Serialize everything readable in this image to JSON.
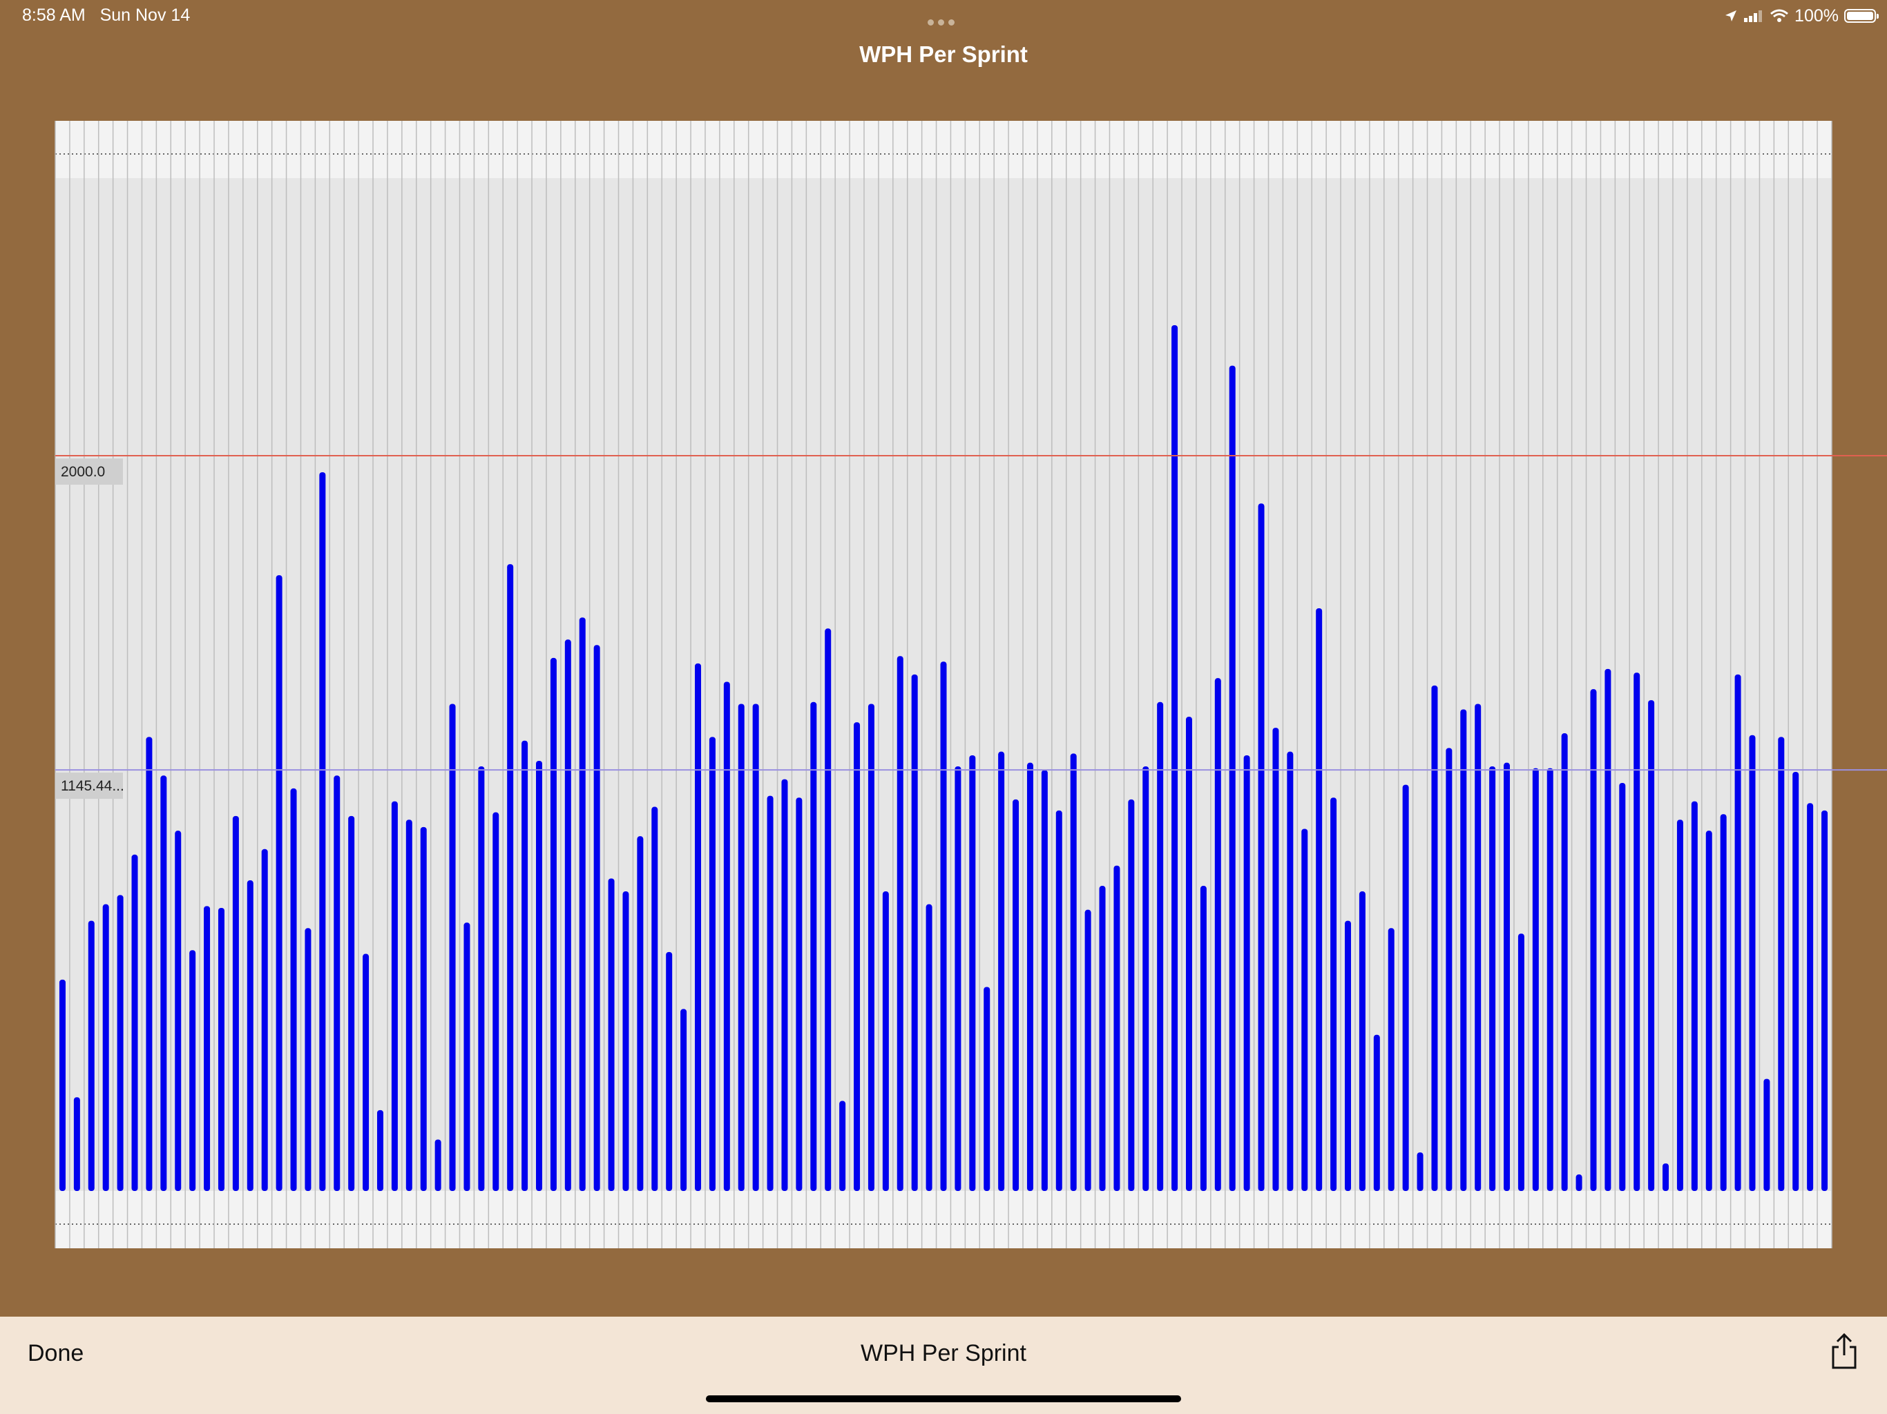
{
  "status_bar": {
    "time": "8:58 AM",
    "date": "Sun Nov 14",
    "battery": "100%",
    "icons": [
      "location-icon",
      "signal-icon",
      "wifi-icon",
      "battery-icon"
    ]
  },
  "header": {
    "title": "WPH Per Sprint"
  },
  "chart_data": {
    "type": "bar",
    "title": "WPH Per Sprint",
    "xlabel": "",
    "ylabel": "",
    "ylim": [
      0,
      2755
    ],
    "grid": true,
    "bar_color": "#0000ee",
    "reference_lines": [
      {
        "label": "2000.0",
        "value": 2000.0,
        "color": "#e06050"
      },
      {
        "label": "1145.44...",
        "value": 1145.44,
        "color": "#9a90e0"
      }
    ],
    "values": [
      575,
      255,
      735,
      780,
      805,
      915,
      1235,
      1130,
      980,
      655,
      775,
      770,
      1020,
      845,
      930,
      1675,
      1095,
      715,
      1955,
      1130,
      1020,
      645,
      220,
      1060,
      1010,
      990,
      140,
      1325,
      730,
      1155,
      1030,
      1705,
      1225,
      1170,
      1450,
      1500,
      1560,
      1485,
      850,
      815,
      965,
      1045,
      650,
      495,
      1435,
      1235,
      1385,
      1325,
      1325,
      1075,
      1120,
      1070,
      1330,
      1530,
      245,
      1275,
      1325,
      815,
      1455,
      1405,
      780,
      1440,
      1155,
      1185,
      555,
      1195,
      1065,
      1165,
      1145,
      1035,
      1190,
      765,
      830,
      885,
      1065,
      1155,
      1330,
      2355,
      1290,
      830,
      1395,
      2245,
      1185,
      1870,
      1260,
      1195,
      985,
      1585,
      1070,
      735,
      815,
      425,
      715,
      1105,
      105,
      1375,
      1205,
      1310,
      1325,
      1155,
      1165,
      700,
      1150,
      1150,
      1245,
      45,
      1365,
      1420,
      1110,
      1410,
      1335,
      75,
      1010,
      1060,
      980,
      1025,
      1405,
      1240,
      305,
      1235,
      1140,
      1055,
      1035
    ]
  },
  "bottom_bar": {
    "done_label": "Done",
    "title": "WPH Per Sprint",
    "share_icon": "share-icon"
  }
}
